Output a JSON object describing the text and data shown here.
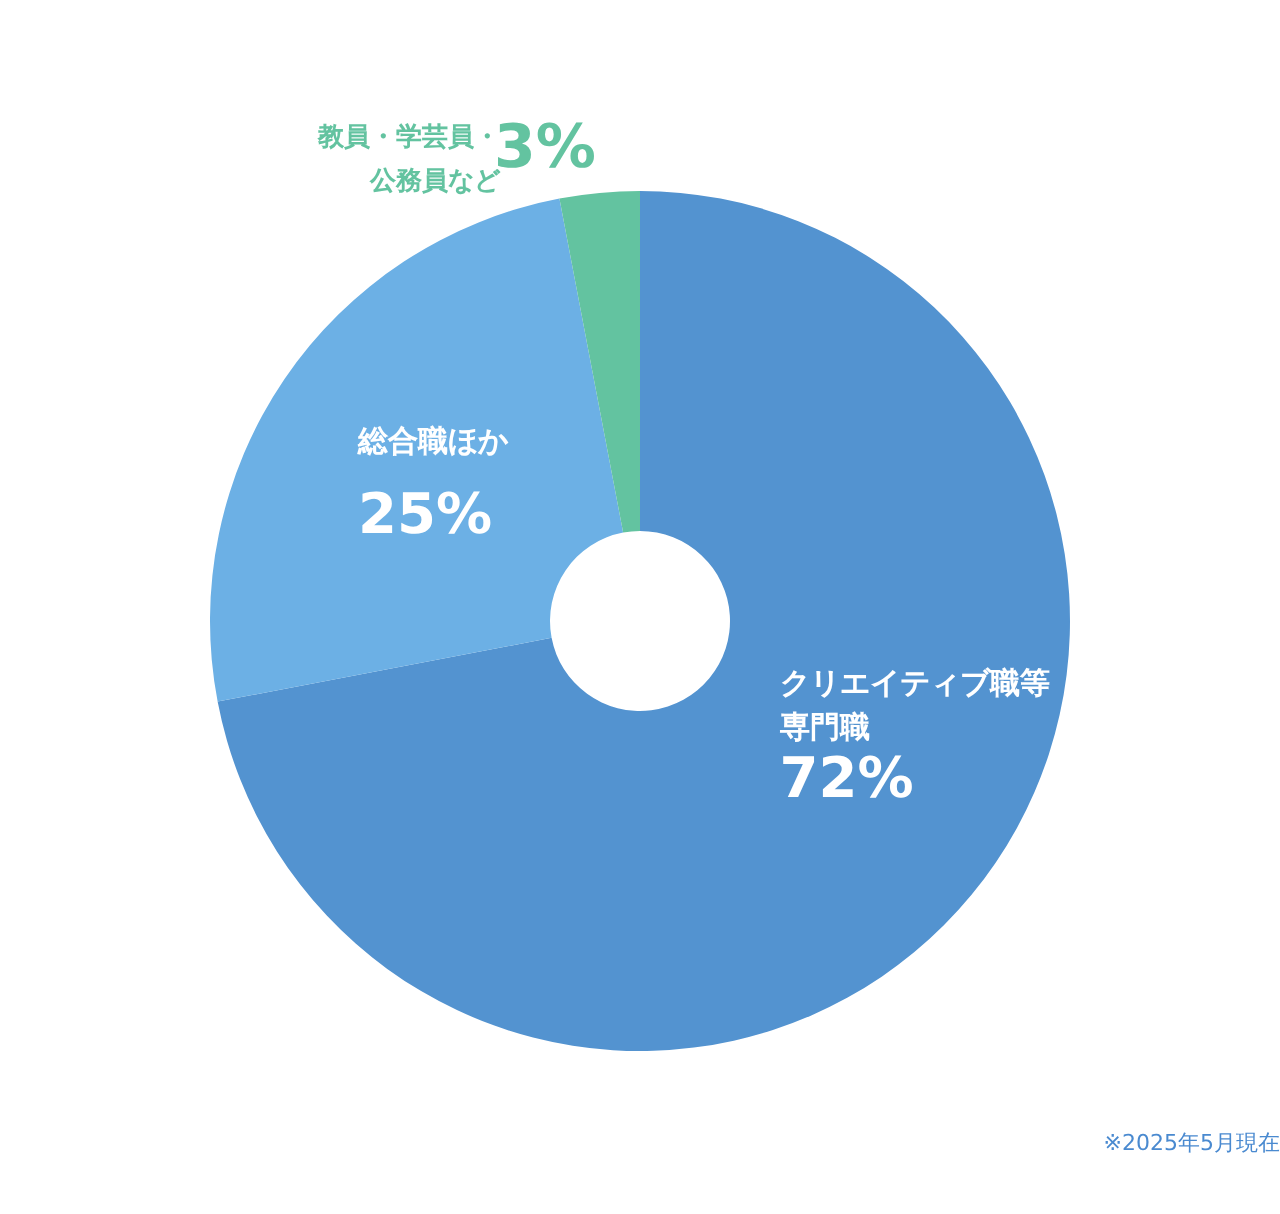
{
  "chart_data": {
    "type": "donut",
    "categories": [
      "クリエイティブ職等専門職",
      "総合職ほか",
      "教員・学芸員・公務員など"
    ],
    "values": [
      72,
      25,
      3
    ],
    "value_labels": [
      "72%",
      "25%",
      "3%"
    ],
    "colors": [
      "#5393d0",
      "#6cb0e5",
      "#63c3a0"
    ],
    "annotations": [
      "※2025年5月現在"
    ]
  }
}
